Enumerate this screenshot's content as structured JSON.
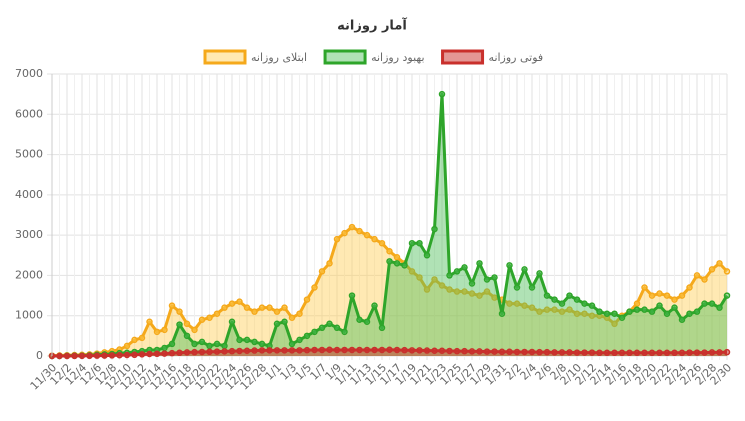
{
  "chart_data": {
    "type": "line",
    "title": "آمار روزانه",
    "categories": [
      "11/30",
      null,
      "12/2",
      null,
      "12/4",
      null,
      "12/6",
      null,
      "12/8",
      null,
      "12/10",
      null,
      "12/12",
      null,
      "12/14",
      null,
      "12/16",
      null,
      "12/18",
      null,
      "12/20",
      null,
      "12/22",
      null,
      "12/24",
      null,
      "12/26",
      null,
      "12/28",
      null,
      "1/1",
      null,
      "1/3",
      null,
      "1/5",
      null,
      "1/7",
      null,
      "1/9",
      null,
      "1/11",
      null,
      "1/13",
      null,
      "1/15",
      null,
      "1/17",
      null,
      "1/19",
      null,
      "1/21",
      null,
      "1/23",
      null,
      "1/25",
      null,
      "1/27",
      null,
      "1/29",
      null,
      "1/31",
      null,
      "2/2",
      null,
      "2/4",
      null,
      "2/6",
      null,
      "2/8",
      null,
      "2/10",
      null,
      "2/12",
      null,
      "2/14",
      null,
      "2/16",
      null,
      "2/18",
      null,
      "2/20",
      null,
      "2/22",
      null,
      "2/24",
      null,
      "2/26",
      null,
      "2/28",
      null,
      "2/30"
    ],
    "series": [
      {
        "name": "ابتلای روزانه",
        "color": "#f5a91b",
        "fill": "rgba(255,206,86,0.45)",
        "values": [
          10,
          15,
          20,
          25,
          30,
          40,
          60,
          90,
          120,
          160,
          250,
          400,
          450,
          850,
          600,
          650,
          1250,
          1100,
          800,
          650,
          900,
          950,
          1050,
          1200,
          1300,
          1350,
          1200,
          1100,
          1200,
          1200,
          1100,
          1200,
          950,
          1050,
          1400,
          1700,
          2100,
          2300,
          2900,
          3050,
          3200,
          3100,
          3000,
          2900,
          2800,
          2600,
          2450,
          2300,
          2100,
          1950,
          1650,
          1900,
          1750,
          1650,
          1600,
          1600,
          1550,
          1500,
          1600,
          1450,
          1400,
          1300,
          1300,
          1250,
          1200,
          1100,
          1150,
          1150,
          1100,
          1150,
          1050,
          1050,
          1000,
          1000,
          950,
          800,
          1000,
          1100,
          1300,
          1700,
          1500,
          1550,
          1500,
          1400,
          1500,
          1700,
          2000,
          1900,
          2150,
          2300,
          2100
        ]
      },
      {
        "name": "بهبود روزانه",
        "color": "#2ea52a",
        "fill": "rgba(80,190,90,0.45)",
        "values": [
          0,
          0,
          5,
          10,
          10,
          20,
          30,
          40,
          50,
          70,
          80,
          100,
          120,
          150,
          150,
          200,
          300,
          780,
          500,
          300,
          350,
          250,
          300,
          250,
          850,
          400,
          400,
          350,
          300,
          250,
          800,
          850,
          300,
          400,
          500,
          600,
          700,
          800,
          700,
          600,
          1500,
          900,
          850,
          1250,
          700,
          2350,
          2300,
          2250,
          2800,
          2800,
          2500,
          3150,
          6500,
          2000,
          2100,
          2200,
          1800,
          2300,
          1900,
          1950,
          1050,
          2250,
          1700,
          2150,
          1700,
          2050,
          1500,
          1400,
          1300,
          1500,
          1400,
          1300,
          1250,
          1100,
          1050,
          1050,
          950,
          1100,
          1150,
          1150,
          1100,
          1250,
          1050,
          1200,
          900,
          1050,
          1100,
          1300,
          1300,
          1200,
          1500
        ]
      },
      {
        "name": "فوتی روزانه",
        "color": "#c9302c",
        "fill": "rgba(201,48,44,0.5)",
        "values": [
          0,
          0,
          1,
          2,
          3,
          5,
          8,
          10,
          15,
          20,
          25,
          30,
          40,
          50,
          55,
          60,
          70,
          80,
          90,
          95,
          100,
          105,
          110,
          115,
          120,
          125,
          130,
          135,
          140,
          140,
          140,
          140,
          140,
          140,
          145,
          150,
          150,
          155,
          150,
          150,
          150,
          150,
          150,
          150,
          150,
          155,
          150,
          145,
          140,
          140,
          135,
          130,
          130,
          125,
          120,
          120,
          115,
          115,
          110,
          110,
          105,
          105,
          100,
          100,
          100,
          95,
          95,
          90,
          90,
          90,
          85,
          85,
          85,
          80,
          80,
          80,
          80,
          80,
          80,
          80,
          80,
          80,
          80,
          80,
          80,
          85,
          85,
          85,
          90,
          90,
          95
        ]
      }
    ],
    "ylim": [
      0,
      7000
    ],
    "yticks": [
      0,
      1000,
      2000,
      3000,
      4000,
      5000,
      6000,
      7000
    ],
    "grid": true,
    "legend": "top"
  }
}
